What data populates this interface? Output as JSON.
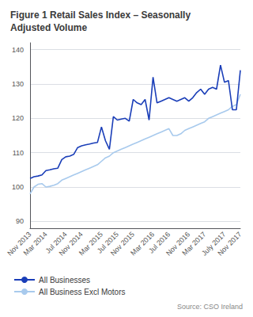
{
  "chart_data": {
    "type": "line",
    "title": "Figure 1 Retail Sales Index – Seasonally\nAdjusted Volume",
    "source": "Source: CSO Ireland",
    "categories": [
      "Nov 2013",
      null,
      null,
      null,
      "Mar 2014",
      null,
      null,
      null,
      null,
      "Jul 2014",
      null,
      null,
      null,
      "Nov 2014",
      null,
      null,
      null,
      null,
      "Mar 2015",
      null,
      null,
      null,
      "Jul 2015",
      null,
      null,
      null,
      "Nov 2015",
      null,
      null,
      null,
      null,
      "Mar 2016",
      null,
      null,
      null,
      "Jul 2016",
      null,
      null,
      null,
      null,
      "Nov 2016",
      null,
      null,
      null,
      "Mar 2017",
      null,
      null,
      null,
      null,
      "July 2017",
      null,
      null,
      null,
      "Nov 2017"
    ],
    "series": [
      {
        "name": "All Businesses",
        "color": "#1a3eb8",
        "values": [
          102.5,
          103.0,
          103.2,
          103.5,
          104.8,
          105.0,
          105.3,
          105.5,
          108.0,
          108.8,
          109.0,
          109.5,
          111.5,
          112.0,
          112.3,
          112.5,
          112.8,
          113.0,
          117.5,
          113.5,
          111.0,
          120.5,
          119.5,
          119.8,
          120.0,
          119.2,
          125.5,
          124.5,
          124.0,
          125.5,
          119.5,
          132.0,
          124.5,
          125.0,
          125.5,
          126.0,
          125.5,
          125.0,
          125.5,
          126.0,
          125.0,
          126.0,
          127.5,
          128.5,
          127.0,
          128.5,
          129.0,
          128.5,
          135.5,
          130.5,
          131.0,
          122.5,
          122.5,
          134.0
        ]
      },
      {
        "name": "All Business Excl Motors",
        "color": "#a8caed",
        "values": [
          98.0,
          100.0,
          100.8,
          101.0,
          100.0,
          100.2,
          100.5,
          101.0,
          102.0,
          102.5,
          103.0,
          103.5,
          104.0,
          104.5,
          105.0,
          105.5,
          106.0,
          106.5,
          107.5,
          108.5,
          109.0,
          110.0,
          110.5,
          111.0,
          111.5,
          112.0,
          112.5,
          113.0,
          113.5,
          114.0,
          114.5,
          115.0,
          115.5,
          116.0,
          116.5,
          117.0,
          115.0,
          115.0,
          115.5,
          116.5,
          117.0,
          117.5,
          118.0,
          118.5,
          119.0,
          120.0,
          120.5,
          121.0,
          121.5,
          122.0,
          122.5,
          123.5,
          124.0,
          127.0
        ]
      }
    ],
    "ylim": [
      88,
      142
    ],
    "yticks": [
      90,
      100,
      110,
      120,
      130,
      140
    ],
    "grid": true,
    "legend": "bottom"
  }
}
